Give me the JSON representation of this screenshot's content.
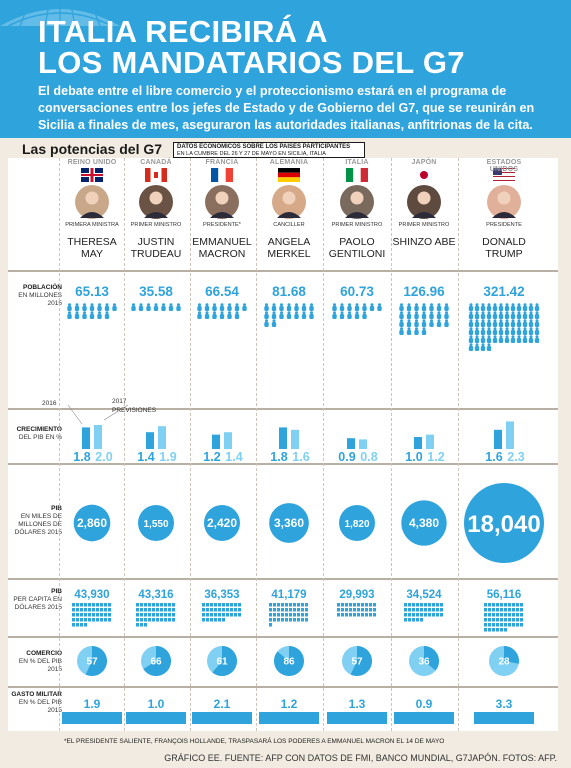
{
  "header": {
    "title_line1": "ITALIA RECIBIRÁ A",
    "title_line2": "LOS MANDATARIOS DEL G7",
    "subtitle": "El debate entre el libre comercio y el proteccionismo  estará en el programa de conversaciones entre los jefes de Estado y de Gobierno del G7, que se reunirán en Sicilia a finales de mes, aseguraron las autoridades italianas, anfitrionas de la cita."
  },
  "section": {
    "title": "Las potencias del G7",
    "box_line1": "DATOS ECONÓMICOS SOBRE LOS PAÍSES PARTICIPANTES",
    "box_line2": "EN LA CUMBRE DEL 26 Y 27 DE MAYO EN SICILIA, ITALIA"
  },
  "row_labels": {
    "population": {
      "bold": "POBLACIÓN",
      "rest": "EN MILLONES 2015"
    },
    "growth": {
      "bold": "CRECIMIENTO",
      "rest": "DEL PIB EN %"
    },
    "gdp": {
      "bold": "PIB",
      "rest": "EN MILES DE MILLONES DE DÓLARES 2015"
    },
    "gdp_pc": {
      "bold": "PIB",
      "rest": "PER CAPITA EN DÓLARES 2015"
    },
    "trade": {
      "bold": "COMERCIO",
      "rest": "EN % DEL PIB 2015"
    },
    "military": {
      "bold": "GASTO MILITAR",
      "rest": "EN % DEL PIB 2015"
    }
  },
  "growth_legend": {
    "y2016": "2016",
    "y2017": "2017",
    "prev": "PREVISIONES"
  },
  "countries": [
    {
      "country": "REINO UNIDO",
      "role": "PRIMERA MINISTRA",
      "leader": "THERESA MAY"
    },
    {
      "country": "CANADÁ",
      "role": "PRIMER MINISTRO",
      "leader": "JUSTIN TRUDEAU"
    },
    {
      "country": "FRANCIA",
      "role": "PRESIDENTE*",
      "leader": "EMMANUEL MACRON"
    },
    {
      "country": "ALEMANIA",
      "role": "CANCILLER",
      "leader": "ANGELA MERKEL"
    },
    {
      "country": "ITALIA",
      "role": "PRIMER MINISTRO",
      "leader": "PAOLO GENTILONI"
    },
    {
      "country": "JAPÓN",
      "role": "PRIMER MINISTRO",
      "leader": "SHINZO ABE"
    },
    {
      "country": "ESTADOS UNIDOS",
      "role": "PRESIDENTE",
      "leader": "DONALD TRUMP"
    }
  ],
  "chart_data": {
    "type": "table",
    "categories": [
      "REINO UNIDO",
      "CANADÁ",
      "FRANCIA",
      "ALEMANIA",
      "ITALIA",
      "JAPÓN",
      "ESTADOS UNIDOS"
    ],
    "series": [
      {
        "name": "POBLACIÓN",
        "values": [
          65.13,
          35.58,
          66.54,
          81.68,
          60.73,
          126.96,
          321.42
        ],
        "labels": [
          "65.13",
          "35.58",
          "66.54",
          "81.68",
          "60.73",
          "126.96",
          "321.42"
        ]
      },
      {
        "name": "2016",
        "values": [
          1.8,
          1.4,
          1.2,
          1.8,
          0.9,
          1.0,
          1.6
        ],
        "labels": [
          "1.8",
          "1.4",
          "1.2",
          "1.8",
          "0.9",
          "1.0",
          "1.6"
        ]
      },
      {
        "name": "2017",
        "values": [
          2.0,
          1.9,
          1.4,
          1.6,
          0.8,
          1.2,
          2.3
        ],
        "labels": [
          "2.0",
          "1.9",
          "1.4",
          "1.6",
          "0.8",
          "1.2",
          "2.3"
        ]
      },
      {
        "name": "PIB",
        "values": [
          2860,
          1550,
          2420,
          3360,
          1820,
          4380,
          18040
        ],
        "labels": [
          "2,860",
          "1,550",
          "2,420",
          "3,360",
          "1,820",
          "4,380",
          "18,040"
        ]
      },
      {
        "name": "PIB PER CAPITA",
        "values": [
          43930,
          43316,
          36353,
          41179,
          29993,
          34524,
          56116
        ],
        "labels": [
          "43,930",
          "43,316",
          "36,353",
          "41,179",
          "29,993",
          "34,524",
          "56,116"
        ]
      },
      {
        "name": "COMERCIO",
        "values": [
          57,
          66,
          61,
          86,
          57,
          36,
          28
        ],
        "labels": [
          "57",
          "66",
          "61",
          "86",
          "57",
          "36",
          "28"
        ]
      },
      {
        "name": "GASTO MILITAR",
        "values": [
          1.9,
          1.0,
          2.1,
          1.2,
          1.3,
          0.9,
          3.3
        ],
        "labels": [
          "1.9",
          "1.0",
          "2.1",
          "1.2",
          "1.3",
          "0.9",
          "3.3"
        ]
      }
    ]
  },
  "colors": {
    "accent": "#2ea3dc",
    "accent_light": "#7fd0f2",
    "background": "#f1ebe1"
  },
  "footnote": "*EL PRESIDENTE SALIENTE, FRANÇOIS HOLLANDE, TRASPASARÁ LOS PODERES A EMMANUEL MACRON EL 14 DE MAYO",
  "source": "GRÁFICO EE. FUENTE: AFP CON DATOS DE FMI, BANCO MUNDIAL, G7JAPÓN. FOTOS: AFP."
}
